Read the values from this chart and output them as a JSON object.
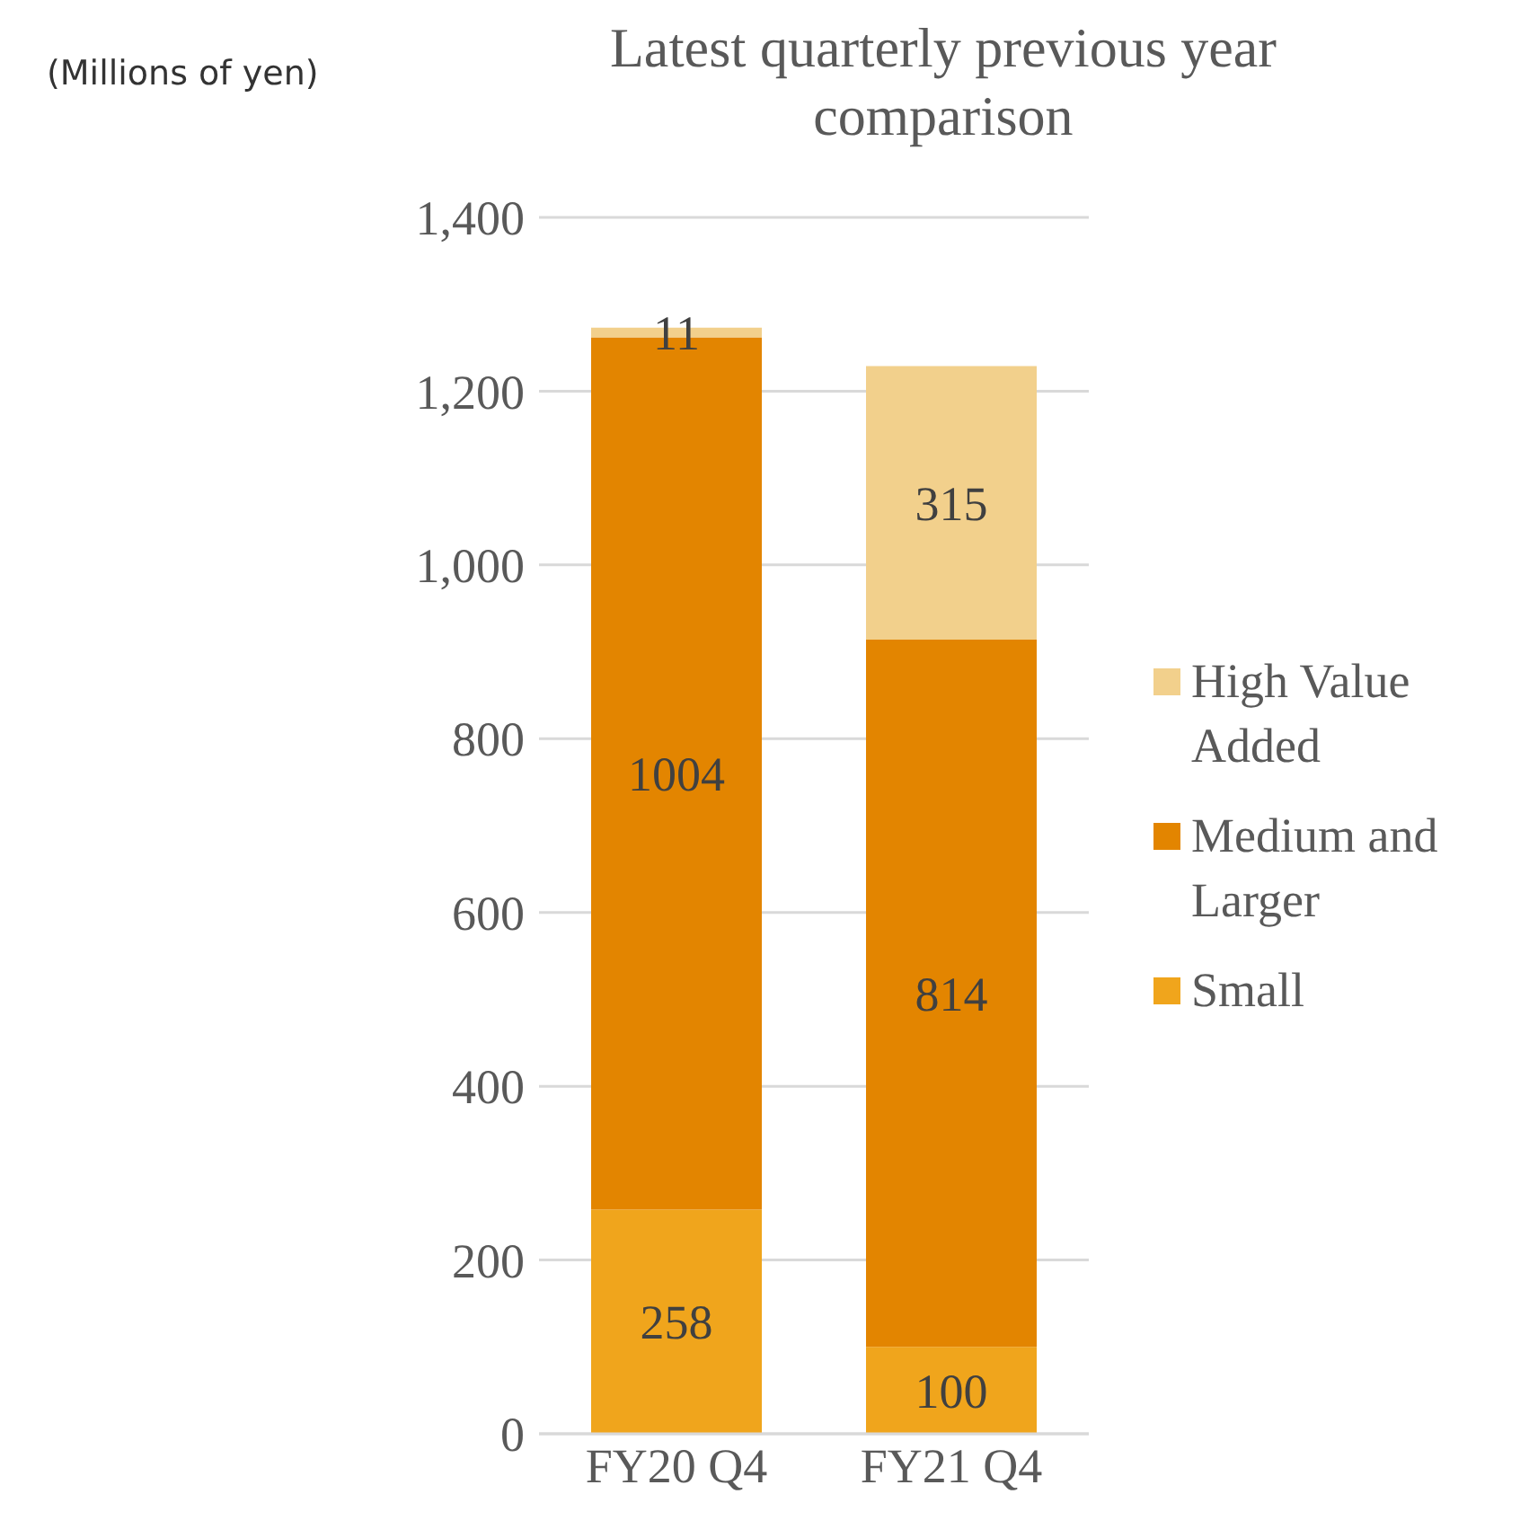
{
  "chart_data": {
    "type": "bar",
    "title": "Latest quarterly previous year comparison",
    "ylabel": "(Millions of yen)",
    "categories": [
      "FY20 Q4",
      "FY21 Q4"
    ],
    "stacked": true,
    "data_labels": true,
    "grid": "y",
    "legend": "right",
    "series": [
      {
        "name": "Small",
        "color": "#f0a51c",
        "values": [
          258,
          100
        ]
      },
      {
        "name": "Medium and Larger",
        "color": "#e38500",
        "values": [
          1004,
          814
        ]
      },
      {
        "name": "High Value Added",
        "color": "#f2d08c",
        "values": [
          11,
          315
        ]
      }
    ],
    "ylim": [
      0,
      1400
    ],
    "yticks": [
      0,
      200,
      400,
      600,
      800,
      {
        "value": 1000,
        "label": "1,000"
      },
      {
        "value": 1200,
        "label": "1,200"
      },
      {
        "value": 1400,
        "label": "1,400"
      }
    ]
  }
}
